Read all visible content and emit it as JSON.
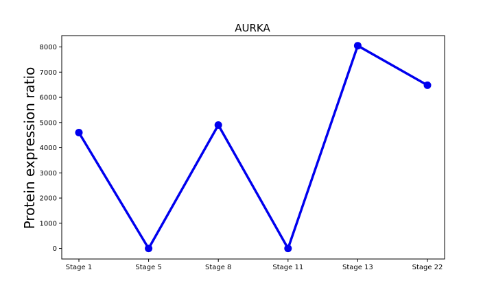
{
  "chart_data": {
    "type": "line",
    "title": "AURKA",
    "xlabel": "",
    "ylabel": "Protein expression ratio",
    "categories": [
      "Stage 1",
      "Stage 5",
      "Stage 8",
      "Stage 11",
      "Stage 13",
      "Stage 22"
    ],
    "series": [
      {
        "values": [
          4600,
          0,
          4900,
          0,
          8050,
          6480
        ],
        "color": "#0000ee"
      }
    ],
    "ylim": [
      -420,
      8450
    ],
    "yticks": [
      0,
      1000,
      2000,
      3000,
      4000,
      5000,
      6000,
      7000,
      8000
    ],
    "grid": false,
    "legend": "none"
  }
}
